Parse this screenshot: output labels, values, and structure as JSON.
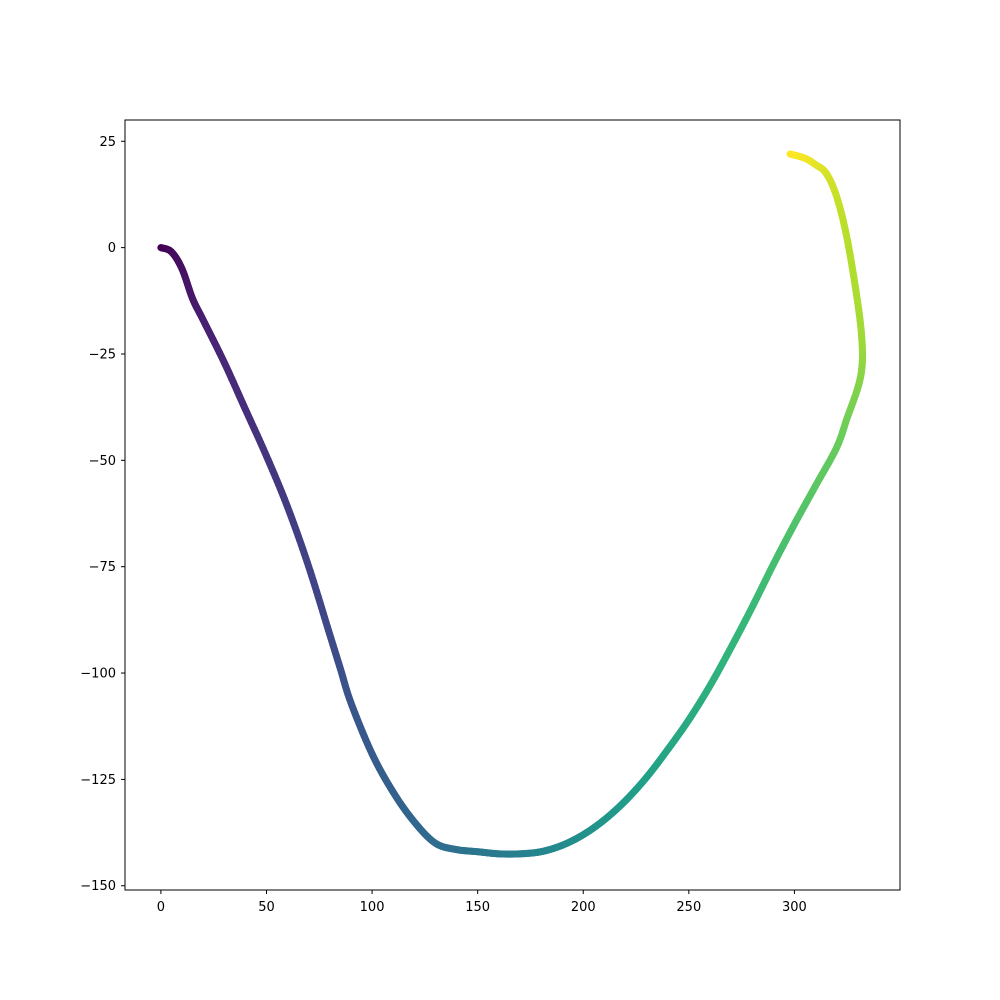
{
  "chart_data": {
    "type": "line",
    "title": "",
    "xlabel": "",
    "ylabel": "",
    "xlim": [
      -17,
      350
    ],
    "ylim": [
      -151,
      30
    ],
    "grid": false,
    "legend": "none",
    "colormap": "viridis",
    "x_ticks": [
      0,
      50,
      100,
      150,
      200,
      250,
      300
    ],
    "x_tick_labels": [
      "0",
      "50",
      "100",
      "150",
      "200",
      "250",
      "300"
    ],
    "y_ticks": [
      25,
      0,
      -25,
      -50,
      -75,
      -100,
      -125,
      -150
    ],
    "y_tick_labels": [
      "25",
      "0",
      "−25",
      "−50",
      "−75",
      "−100",
      "−125",
      "−150"
    ],
    "series": [
      {
        "x": [
          0,
          5,
          10,
          15,
          20,
          30,
          40,
          50,
          60,
          70,
          80,
          85,
          90,
          100,
          110,
          120,
          130,
          140,
          150,
          160,
          170,
          180,
          190,
          200,
          210,
          220,
          230,
          240,
          250,
          260,
          270,
          280,
          290,
          300,
          310,
          320,
          325,
          330,
          332,
          332,
          330,
          325,
          320,
          315,
          310,
          305,
          298
        ],
        "y": [
          0,
          -1,
          -5,
          -12,
          -17,
          -27,
          -38,
          -49,
          -61,
          -75,
          -91,
          -99,
          -107,
          -119,
          -128,
          -135,
          -140,
          -141.5,
          -142,
          -142.5,
          -142.5,
          -142,
          -140.5,
          -138,
          -134.5,
          -130,
          -124.5,
          -118,
          -111,
          -103,
          -94,
          -84.5,
          -74.5,
          -65,
          -56,
          -47,
          -40,
          -33,
          -28,
          -22,
          -13,
          2,
          12,
          17.5,
          19.5,
          21,
          22
        ]
      }
    ]
  }
}
